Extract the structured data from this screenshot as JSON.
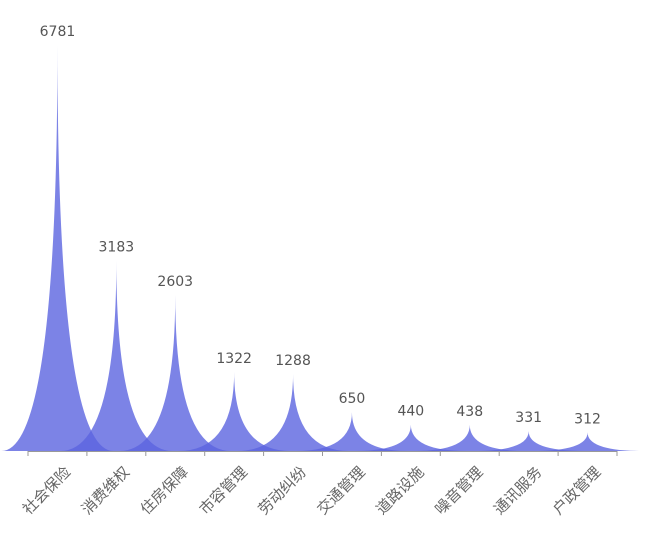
{
  "chart_data": {
    "type": "area",
    "style": "pictorial-spike",
    "categories": [
      "社会保险",
      "消费维权",
      "住房保障",
      "市容管理",
      "劳动纠纷",
      "交通管理",
      "道路设施",
      "噪音管理",
      "通讯服务",
      "户政管理"
    ],
    "values": [
      6781,
      3183,
      2603,
      1322,
      1288,
      650,
      440,
      438,
      331,
      312
    ],
    "ylim": [
      0,
      6781
    ],
    "grid": false,
    "legend": "none",
    "colors": {
      "fill": "#5b64e0",
      "axis": "#999999",
      "label": "#555555"
    }
  }
}
